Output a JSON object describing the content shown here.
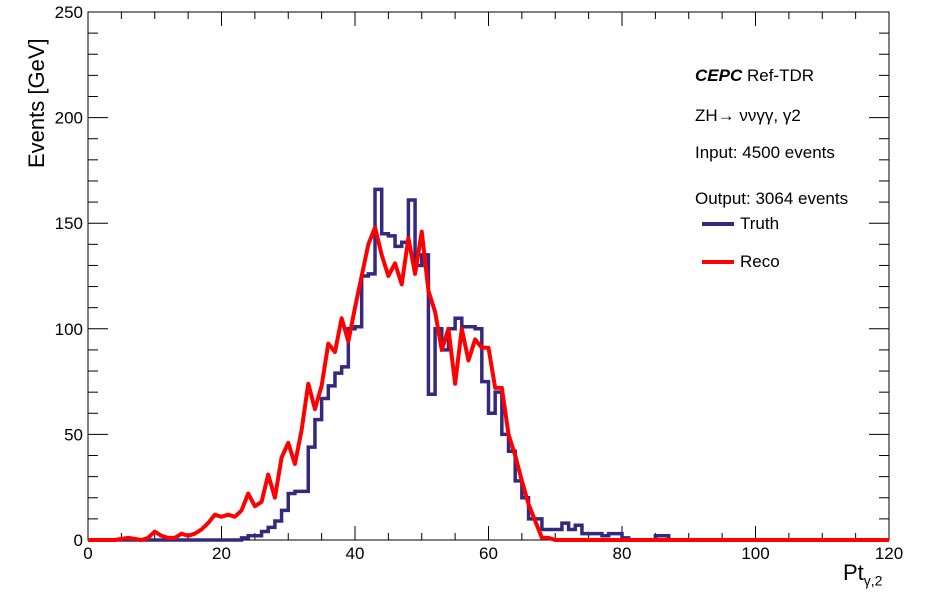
{
  "chart_data": {
    "type": "line",
    "xlabel": "Pt",
    "xlabel_sub": "γ,2",
    "ylabel": "Events [GeV]",
    "xlim": [
      0,
      120
    ],
    "ylim": [
      0,
      250
    ],
    "x_ticks": [
      0,
      20,
      40,
      60,
      80,
      100,
      120
    ],
    "y_ticks": [
      0,
      50,
      100,
      150,
      200,
      250
    ],
    "grid": false,
    "legend_position": "top-right",
    "annotations": {
      "experiment": "CEPC",
      "tag": "Ref-TDR",
      "process": "ZH→ ννγγ, γ2",
      "input": "Input:  4500 events",
      "output": "Output: 3064 events"
    },
    "series": [
      {
        "name": "Truth",
        "style": "step",
        "color": "#332a80",
        "bin_width": 1,
        "x_start": 0,
        "values": [
          0,
          0,
          0,
          0,
          0,
          0,
          0,
          0,
          0,
          0,
          0,
          0,
          0,
          0,
          0,
          0,
          0,
          0,
          0,
          0,
          0,
          0,
          0,
          1,
          2,
          2,
          4,
          6,
          9,
          14,
          22,
          23,
          23,
          44,
          57,
          67,
          73,
          79,
          82,
          100,
          101,
          125,
          126,
          166,
          145,
          144,
          139,
          141,
          161,
          130,
          135,
          69,
          100,
          90,
          100,
          105,
          101,
          101,
          100,
          75,
          60,
          70,
          50,
          42,
          28,
          20,
          10,
          10,
          5,
          5,
          5,
          8,
          5,
          7,
          3,
          3,
          3,
          2,
          3,
          3,
          1,
          0,
          0,
          0,
          0,
          2,
          2,
          0,
          0,
          0,
          0,
          0,
          0,
          0,
          0,
          0,
          0,
          0,
          0,
          0,
          0,
          0,
          0,
          0,
          0,
          0,
          0,
          0,
          0,
          0,
          0,
          0,
          0,
          0,
          0,
          0,
          0,
          0,
          0,
          0
        ]
      },
      {
        "name": "Reco",
        "style": "line",
        "color": "#ff0000",
        "x": [
          0,
          2,
          4,
          6,
          8,
          9,
          10,
          11,
          12,
          13,
          14,
          15,
          16,
          17,
          18,
          19,
          20,
          21,
          22,
          23,
          24,
          25,
          26,
          27,
          28,
          29,
          30,
          31,
          32,
          33,
          34,
          35,
          36,
          37,
          38,
          39,
          40,
          41,
          42,
          43,
          44,
          45,
          46,
          47,
          48,
          49,
          50,
          51,
          52,
          53,
          54,
          55,
          56,
          57,
          58,
          59,
          60,
          61,
          62,
          63,
          64,
          65,
          66,
          67,
          68,
          69,
          70,
          71,
          72,
          73,
          74,
          76,
          80,
          90,
          100,
          110,
          120
        ],
        "values": [
          0,
          0,
          0,
          1,
          0,
          1,
          4,
          2,
          1,
          1,
          3,
          2,
          3,
          5,
          8,
          12,
          11,
          12,
          11,
          14,
          22,
          16,
          18,
          31,
          20,
          39,
          46,
          36,
          52,
          74,
          62,
          73,
          93,
          89,
          105,
          94,
          110,
          125,
          140,
          148,
          135,
          125,
          131,
          121,
          143,
          126,
          146,
          118,
          108,
          90,
          100,
          74,
          100,
          85,
          95,
          91,
          91,
          72,
          72,
          50,
          40,
          28,
          17,
          9,
          1,
          1,
          0,
          0,
          0,
          0,
          0,
          0,
          0,
          0,
          0,
          0,
          0
        ]
      }
    ]
  }
}
